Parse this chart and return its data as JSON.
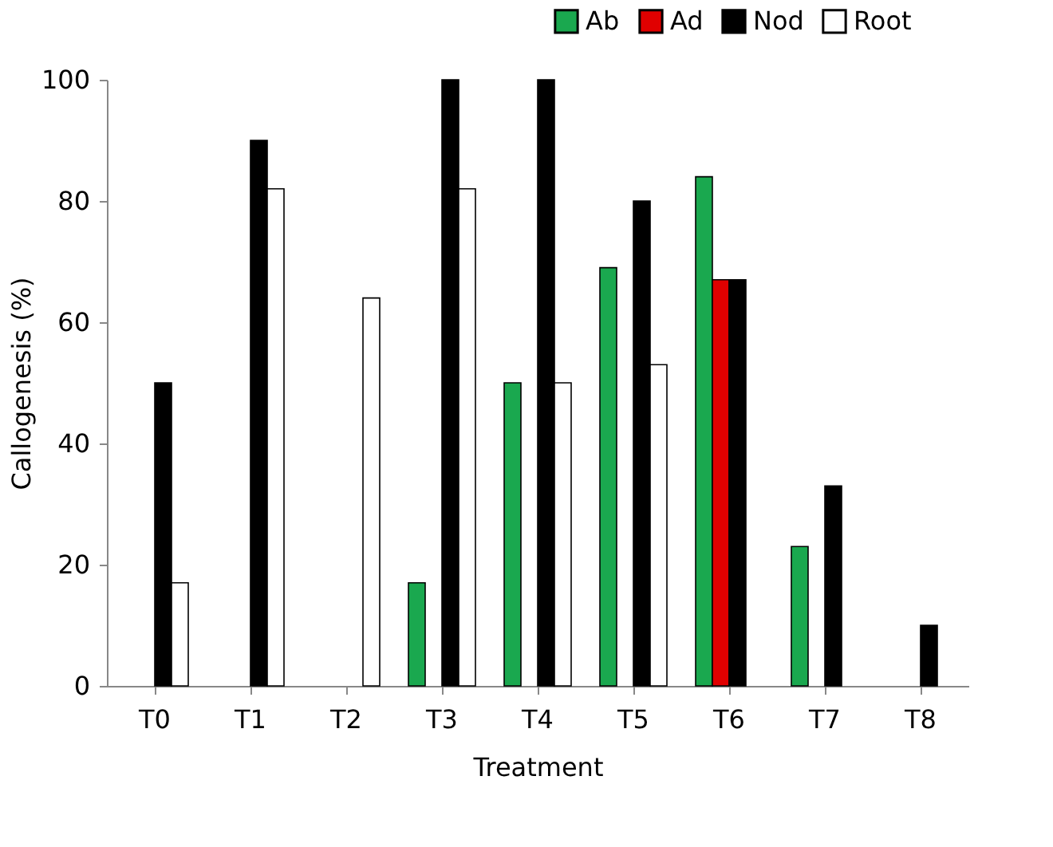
{
  "chart_data": {
    "type": "bar",
    "xlabel": "Treatment",
    "ylabel": "Callogenesis (%)",
    "categories": [
      "T0",
      "T1",
      "T2",
      "T3",
      "T4",
      "T5",
      "T6",
      "T7",
      "T8"
    ],
    "series": [
      {
        "name": "Ab",
        "color": "#1aa84f",
        "values": [
          null,
          null,
          null,
          17,
          50,
          69,
          84,
          23,
          null
        ]
      },
      {
        "name": "Ad",
        "color": "#e00000",
        "values": [
          null,
          null,
          null,
          null,
          null,
          null,
          67,
          null,
          null
        ]
      },
      {
        "name": "Nod",
        "color": "#000000",
        "values": [
          50,
          90,
          null,
          100,
          100,
          80,
          67,
          33,
          10
        ]
      },
      {
        "name": "Root",
        "color": "#ffffff",
        "values": [
          17,
          82,
          64,
          82,
          50,
          53,
          null,
          null,
          null
        ]
      }
    ],
    "ylim": [
      0,
      100
    ],
    "yticks": [
      0,
      20,
      40,
      60,
      80,
      100
    ],
    "grid": false,
    "legend": "top right"
  }
}
